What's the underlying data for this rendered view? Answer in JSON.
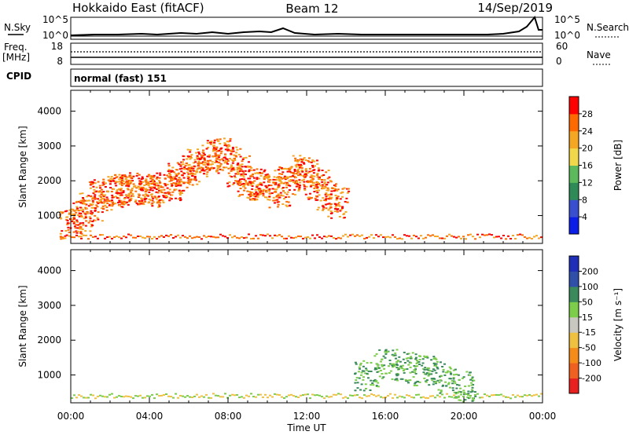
{
  "header": {
    "station": "Hokkaido East (fitACF)",
    "beam": "Beam 12",
    "date": "14/Sep/2019"
  },
  "strips": {
    "nsky_label": "N.Sky",
    "nsky_ticks": [
      "10^5",
      "10^0"
    ],
    "nsearch_label": "N.Search",
    "nsearch_ticks": [
      "10^5",
      "10^0"
    ],
    "freq_label": "Freq.",
    "freq_unit": "[MHz]",
    "freq_ticks": [
      "18",
      "8"
    ],
    "nave_label": "Nave",
    "nave_ticks": [
      "60",
      "0"
    ],
    "cpid_label": "CPID",
    "cpid_value": "normal (fast) 151"
  },
  "chart_data": [
    {
      "type": "heatmap",
      "panel": "power",
      "ylabel": "Slant Range [km]",
      "xlabel": "",
      "yticks": [
        "1000",
        "2000",
        "3000",
        "4000"
      ],
      "xlim": [
        0,
        24
      ],
      "ylim": [
        200,
        4600
      ],
      "colorbar_label": "Power [dB]",
      "colorbar_ticks": [
        "4",
        "8",
        "12",
        "16",
        "20",
        "24",
        "28"
      ],
      "colorbar_colors": [
        "#0a1ee8",
        "#3a4fd0",
        "#2e8b57",
        "#5cba5c",
        "#f0d84a",
        "#f5a623",
        "#ff6a00",
        "#ff0000"
      ],
      "series": [
        {
          "x": [
            0.0,
            0.5,
            1.0,
            1.5,
            2.0,
            2.5,
            3.0,
            3.5,
            4.0,
            4.5,
            5.0,
            5.5,
            6.0,
            6.5,
            7.0,
            7.5,
            8.0,
            8.5,
            9.0,
            9.5,
            10.0,
            10.5,
            11.0,
            11.5,
            12.0,
            12.5,
            13.0,
            13.5
          ],
          "y": [
            800,
            1000,
            1300,
            1600,
            1700,
            1750,
            1750,
            1800,
            1700,
            1800,
            1900,
            2100,
            2300,
            2500,
            2700,
            2800,
            2600,
            2300,
            2000,
            1900,
            1900,
            1700,
            2000,
            2300,
            2200,
            1900,
            1600,
            1400
          ]
        }
      ]
    },
    {
      "type": "heatmap",
      "panel": "velocity",
      "ylabel": "Slant Range [km]",
      "xlabel": "Time UT",
      "yticks": [
        "1000",
        "2000",
        "3000",
        "4000"
      ],
      "xticks": [
        "00:00",
        "04:00",
        "08:00",
        "12:00",
        "16:00",
        "20:00",
        "00:00"
      ],
      "xlim": [
        0,
        24
      ],
      "ylim": [
        200,
        4600
      ],
      "colorbar_label": "Velocity [m s⁻¹]",
      "colorbar_ticks": [
        "200",
        "100",
        "50",
        "15",
        "-15",
        "-50",
        "-100",
        "-200"
      ],
      "colorbar_colors": [
        "#1f2fb8",
        "#2f4fa8",
        "#3a8a5c",
        "#7ccd4a",
        "#c8c8c0",
        "#f0c040",
        "#f58c1a",
        "#f06020",
        "#e82020"
      ],
      "series": [
        {
          "x": [
            15.0,
            16.0,
            17.0,
            18.0,
            19.0,
            20.0
          ],
          "y": [
            1000,
            1300,
            1250,
            1150,
            950,
            700
          ]
        }
      ]
    }
  ]
}
